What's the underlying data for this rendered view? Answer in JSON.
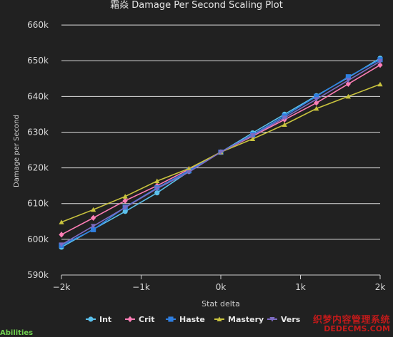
{
  "chart_data": {
    "type": "line",
    "title": "霜焱 Damage Per Second Scaling Plot",
    "xlabel": "Stat delta",
    "ylabel": "Damage per Second",
    "xlim": [
      -2000,
      2000
    ],
    "ylim": [
      590000,
      665000
    ],
    "x_ticks": [
      -2000,
      -1000,
      0,
      1000,
      2000
    ],
    "x_tick_labels": [
      "−2k",
      "−1k",
      "0k",
      "1k",
      "2k"
    ],
    "y_ticks": [
      590000,
      600000,
      610000,
      620000,
      630000,
      640000,
      650000,
      660000
    ],
    "y_tick_labels": [
      "590k",
      "600k",
      "610k",
      "620k",
      "630k",
      "640k",
      "650k",
      "660k"
    ],
    "grid": "horizontal",
    "legend_position": "bottom",
    "x": [
      -2000,
      -1600,
      -1200,
      -800,
      -400,
      0,
      400,
      800,
      1200,
      1600,
      2000
    ],
    "series": [
      {
        "name": "Int",
        "color": "#5bc0eb",
        "marker": "circle",
        "values": [
          597800,
          602800,
          607800,
          613000,
          619000,
          624400,
          629800,
          635000,
          640200,
          645300,
          650700
        ]
      },
      {
        "name": "Crit",
        "color": "#ff7eb6",
        "marker": "diamond",
        "values": [
          601300,
          606000,
          610800,
          615000,
          619600,
          624400,
          628900,
          633500,
          638200,
          643500,
          648800
        ]
      },
      {
        "name": "Haste",
        "color": "#2f7fe0",
        "marker": "square",
        "values": [
          598300,
          602700,
          609000,
          614400,
          619200,
          624400,
          629300,
          634500,
          640000,
          645500,
          650300
        ]
      },
      {
        "name": "Mastery",
        "color": "#c9c33e",
        "marker": "triangle",
        "values": [
          604800,
          608300,
          612000,
          616300,
          619800,
          624400,
          628100,
          632100,
          636600,
          640000,
          643400
        ]
      },
      {
        "name": "Vers",
        "color": "#7d6bc2",
        "marker": "triangle-down",
        "values": [
          598500,
          603700,
          608900,
          614200,
          618800,
          624400,
          629100,
          634000,
          639200,
          644500,
          649800
        ]
      }
    ]
  },
  "abilities_label": "Abilities",
  "watermark": {
    "text": "织梦内容管理系统",
    "url": "DEDECMS.COM"
  }
}
